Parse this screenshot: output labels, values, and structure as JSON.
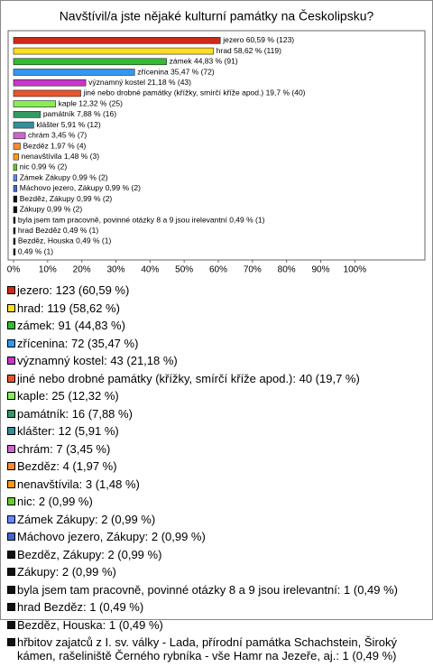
{
  "chart_data": {
    "type": "barh",
    "title": "Navštívil/a jste nějaké kulturní památky na Českolipsku?",
    "categories": [
      "jezero",
      "hrad",
      "zámek",
      "zřícenina",
      "významný kostel",
      "jiné nebo drobné památky (křížky, smírčí kříže apod.)",
      "kaple",
      "památník",
      "klášter",
      "chrám",
      "Bezděz",
      "nenavštívila",
      "nic",
      "Zámek Zákupy",
      "Máchovo jezero, Zákupy",
      "Bezděz, Zákupy",
      "Zákupy",
      "byla jsem tam pracovně, povinné otázky 8 a 9 jsou irelevantní",
      "hrad Bezděz",
      "Bezděz, Houska",
      null
    ],
    "values": [
      60.59,
      58.62,
      44.83,
      35.47,
      21.18,
      19.7,
      12.32,
      7.88,
      5.91,
      3.45,
      1.97,
      1.48,
      0.99,
      0.99,
      0.99,
      0.99,
      0.99,
      0.49,
      0.49,
      0.49,
      0.49
    ],
    "value_labels": [
      "jezero 60,59 % (123)",
      "hrad 58,62 % (119)",
      "zámek 44,83 % (91)",
      "zřícenina 35,47 % (72)",
      "významný kostel 21,18 % (43)",
      "jiné nebo drobné památky (křížky, smírčí kříže apod.) 19,7 % (40)",
      "kaple 12,32 % (25)",
      "památník 7,88 % (16)",
      "klášter 5,91 % (12)",
      "chrám 3,45 % (7)",
      "Bezděz 1,97 % (4)",
      "nenavštívila 1,48 % (3)",
      "nic 0,99 % (2)",
      "Zámek Zákupy 0,99 % (2)",
      "Máchovo jezero, Zákupy 0,99 % (2)",
      "Bezděz, Zákupy 0,99 % (2)",
      "Zákupy 0,99 % (2)",
      "byla jsem tam pracovně, povinné otázky 8 a 9 jsou irelevantní 0,49 % (1)",
      "hrad Bezděz 0,49 % (1)",
      "Bezděz, Houska 0,49 % (1)",
      "0,49 % (1)"
    ],
    "legend_labels": [
      "jezero: 123 (60,59 %)",
      "hrad: 119 (58,62 %)",
      "zámek: 91 (44,83 %)",
      "zřícenina: 72 (35,47 %)",
      "významný kostel: 43 (21,18 %)",
      "jiné nebo drobné památky (křížky, smírčí kříže apod.): 40 (19,7 %)",
      "kaple: 25 (12,32 %)",
      "památník: 16 (7,88 %)",
      "klášter: 12 (5,91 %)",
      "chrám: 7 (3,45 %)",
      "Bezděz: 4 (1,97 %)",
      "nenavštívila: 3 (1,48 %)",
      "nic: 2 (0,99 %)",
      "Zámek Zákupy: 2 (0,99 %)",
      "Máchovo jezero, Zákupy: 2 (0,99 %)",
      "Bezděz, Zákupy: 2 (0,99 %)",
      "Zákupy: 2 (0,99 %)",
      "byla jsem tam pracovně, povinné otázky 8 a 9 jsou irelevantní: 1 (0,49 %)",
      "hrad Bezděz: 1 (0,49 %)",
      "Bezděz, Houska: 1 (0,49 %)",
      "hřbitov zajatců z I. sv. války - Lada, přírodní památka Schachstein, Široký kámen, rašeliniště Černého rybníka - vše Hamr na Jezeře, aj.: 1 (0,49 %)"
    ],
    "colors": [
      "#cc2a1a",
      "#ffdd22",
      "#33bb33",
      "#3399ee",
      "#cc33cc",
      "#e8552a",
      "#88ee55",
      "#339966",
      "#338f99",
      "#cc66cc",
      "#ff8833",
      "#ff9911",
      "#66cc33",
      "#6688ff",
      "#4466cc",
      "#111111",
      "#111111",
      "#111111",
      "#111111",
      "#111111",
      "#111111"
    ],
    "xlim": [
      0,
      120
    ],
    "xticks": [
      {
        "value": 0,
        "label": "0%"
      },
      {
        "value": 10,
        "label": "10%"
      },
      {
        "value": 20,
        "label": "20%"
      },
      {
        "value": 30,
        "label": "30%"
      },
      {
        "value": 40,
        "label": "40%"
      },
      {
        "value": 50,
        "label": "50%"
      },
      {
        "value": 60,
        "label": "60%"
      },
      {
        "value": 70,
        "label": "70%"
      },
      {
        "value": 80,
        "label": "80%"
      },
      {
        "value": 90,
        "label": "90%"
      },
      {
        "value": 100,
        "label": "100%"
      }
    ],
    "grid": false
  }
}
